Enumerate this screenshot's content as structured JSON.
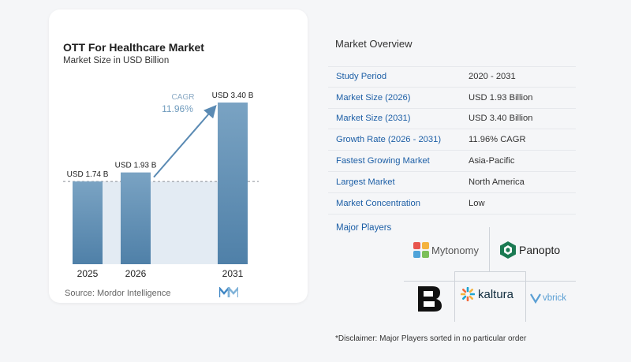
{
  "chart": {
    "title": "OTT For Healthcare Market",
    "subtitle": "Market Size in USD Billion",
    "source": "Source:  Mordor Intelligence"
  },
  "chart_data": {
    "type": "bar",
    "title": "OTT For Healthcare Market",
    "subtitle": "Market Size in USD Billion",
    "categories": [
      "2025",
      "2026",
      "2031"
    ],
    "values": [
      1.74,
      1.93,
      3.4
    ],
    "value_labels": [
      "USD 1.74 B",
      "USD 1.93 B",
      "USD 3.40 B"
    ],
    "ylim": [
      0,
      3.4
    ],
    "grid": false,
    "annotation": {
      "label": "CAGR",
      "value": "11.96%"
    },
    "colors": {
      "bar_top": "#6f9bbd",
      "bar_bottom": "#4d7ea6",
      "shade": "#e3ebf3",
      "arrow": "#5a8ab3"
    }
  },
  "overview": {
    "title": "Market Overview",
    "rows": [
      {
        "key": "Study Period",
        "value": "2020 - 2031"
      },
      {
        "key": "Market Size (2026)",
        "value": "USD 1.93 Billion"
      },
      {
        "key": "Market Size (2031)",
        "value": "USD 3.40 Billion"
      },
      {
        "key": "Growth Rate (2026 - 2031)",
        "value": "11.96% CAGR"
      },
      {
        "key": "Fastest Growing Market",
        "value": "Asia-Pacific"
      },
      {
        "key": "Largest Market",
        "value": "North America"
      },
      {
        "key": "Market Concentration",
        "value": "Low"
      }
    ]
  },
  "players": {
    "title": "Major Players",
    "names": [
      "Mytonomy",
      "Panopto",
      "kaltura",
      "vbrick"
    ]
  },
  "disclaimer": "*Disclaimer: Major Players sorted in no particular order",
  "colors": {
    "accent": "#1d5fa6",
    "bar": "#5b89b1"
  }
}
